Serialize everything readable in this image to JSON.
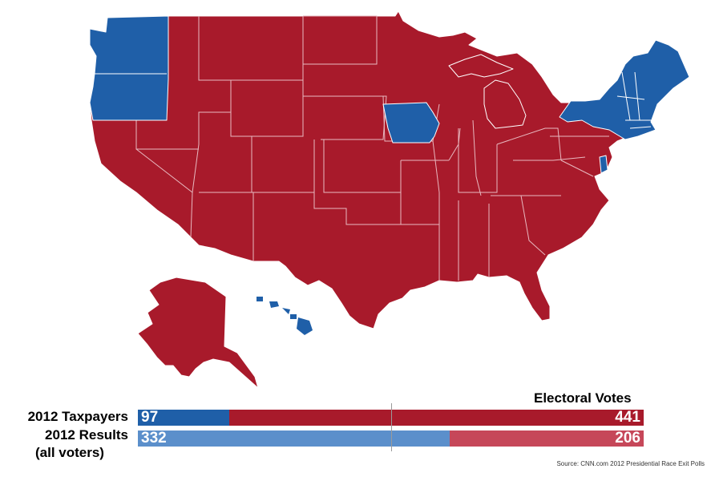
{
  "colors": {
    "republican": "#a81a2b",
    "democrat": "#1f5fa8",
    "republican_light": "#c64759",
    "democrat_light": "#5b8fcb"
  },
  "map": {
    "blue_states": [
      "Washington",
      "Oregon",
      "Iowa",
      "Delaware",
      "Hawaii",
      "New York",
      "Vermont",
      "New Hampshire",
      "Maine",
      "Massachusetts",
      "Connecticut",
      "Rhode Island"
    ],
    "red_states": "all other states"
  },
  "legend": {
    "header": "Electoral Votes",
    "rows": [
      {
        "label": "2012 Taxpayers",
        "dem": "97",
        "rep": "441",
        "dem_share": 0.18
      },
      {
        "label": "2012 Results",
        "sublabel": "(all voters)",
        "dem": "332",
        "rep": "206",
        "dem_share": 0.617
      }
    ]
  },
  "source": "Source: CNN.com 2012 Presidential Race Exit Polls"
}
